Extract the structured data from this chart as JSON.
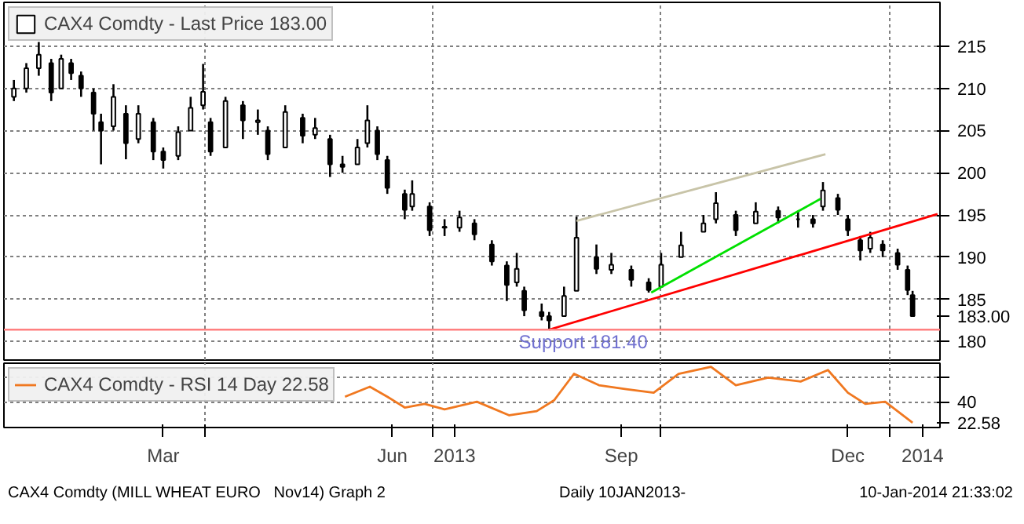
{
  "chart_data": [
    {
      "type": "candlestick",
      "xlim": [
        "2013-01-10",
        "2014-01-21"
      ],
      "ylim": [
        177.8,
        220.2
      ],
      "yticks": [
        180,
        185,
        190,
        195,
        200,
        205,
        210,
        215,
        {
          "value": 183,
          "label": "183.00"
        }
      ],
      "tick_labels": "y",
      "grid": true,
      "legend": "top left",
      "xticks": [
        {
          "value": "2013-04-01",
          "label": null
        },
        {
          "value": "2013-07-01",
          "label": null
        },
        {
          "value": "2013-10-01",
          "label": null
        },
        {
          "value": "2014-01-01",
          "label": null
        }
      ],
      "series": [
        {
          "type": "candlestick",
          "name": "CAX4 Comdty - Last Price 183.00",
          "color": "#000000",
          "x": [
            "2013-01-14",
            "2013-01-19",
            "2013-01-24",
            "2013-01-29",
            "2013-02-02",
            "2013-02-06",
            "2013-02-10",
            "2013-02-15",
            "2013-02-18",
            "2013-02-23",
            "2013-02-28",
            "2013-03-05",
            "2013-03-11",
            "2013-03-15",
            "2013-03-21",
            "2013-03-26",
            "2013-03-31",
            "2013-04-03",
            "2013-04-09",
            "2013-04-16",
            "2013-04-22",
            "2013-04-26",
            "2013-05-03",
            "2013-05-10",
            "2013-05-15",
            "2013-05-21",
            "2013-05-26",
            "2013-06-01",
            "2013-06-05",
            "2013-06-09",
            "2013-06-13",
            "2013-06-20",
            "2013-06-23",
            "2013-06-30",
            "2013-07-06",
            "2013-07-12",
            "2013-07-18",
            "2013-07-25",
            "2013-07-31",
            "2013-08-04",
            "2013-08-07",
            "2013-08-14",
            "2013-08-17",
            "2013-08-23",
            "2013-08-28",
            "2013-09-05",
            "2013-09-11",
            "2013-09-19",
            "2013-09-26",
            "2013-10-01",
            "2013-10-09",
            "2013-10-18",
            "2013-10-23",
            "2013-10-31",
            "2013-11-08",
            "2013-11-17",
            "2013-11-25",
            "2013-12-01",
            "2013-12-05",
            "2013-12-11",
            "2013-12-15",
            "2013-12-20",
            "2013-12-24",
            "2013-12-29",
            "2014-01-04",
            "2014-01-08",
            "2014-01-10"
          ],
          "ohlc": [
            [
              209,
              211,
              208.5,
              210
            ],
            [
              210,
              213,
              209.5,
              212.4
            ],
            [
              212.4,
              215.5,
              211.5,
              214
            ],
            [
              213,
              213.5,
              208.5,
              209.5
            ],
            [
              210,
              214,
              210,
              213.5
            ],
            [
              213,
              213.5,
              211,
              211.8
            ],
            [
              211.5,
              212,
              209,
              210
            ],
            [
              209.5,
              210,
              205,
              207
            ],
            [
              206,
              207,
              201,
              205
            ],
            [
              205.5,
              210.5,
              205,
              209
            ],
            [
              207,
              208,
              201.6,
              203.5
            ],
            [
              204,
              208,
              203.5,
              207
            ],
            [
              206,
              206.5,
              201.5,
              202.5
            ],
            [
              202.5,
              203,
              200.5,
              201.5
            ],
            [
              202,
              205.5,
              201.5,
              204.8
            ],
            [
              205,
              209,
              205,
              207.7
            ],
            [
              208,
              212.9,
              207.5,
              209.6
            ],
            [
              206,
              206.5,
              202,
              202.5
            ],
            [
              203,
              209,
              203,
              208.5
            ],
            [
              208,
              208.5,
              204,
              206.2
            ],
            [
              206,
              207.5,
              204.5,
              206.2
            ],
            [
              205,
              205.5,
              201.5,
              202.2
            ],
            [
              203,
              208,
              203,
              207.2
            ],
            [
              206.5,
              207,
              203.5,
              204.4
            ],
            [
              204.5,
              206.5,
              204,
              205.3
            ],
            [
              204,
              204.5,
              199.5,
              201
            ],
            [
              201,
              202,
              200,
              200.7
            ],
            [
              201,
              204,
              201,
              203
            ],
            [
              203.5,
              208,
              203,
              206.2
            ],
            [
              205,
              205.5,
              201.5,
              202.2
            ],
            [
              201.5,
              202,
              197.5,
              198.2
            ],
            [
              197.5,
              198,
              194.5,
              195.6
            ],
            [
              196,
              199.1,
              195.5,
              197.5
            ],
            [
              196,
              196.5,
              192.5,
              193.2
            ],
            [
              193.5,
              194.5,
              192.5,
              193.6
            ],
            [
              193.5,
              195.5,
              193,
              194.7
            ],
            [
              194,
              194.5,
              192,
              192.7
            ],
            [
              191.5,
              192,
              189,
              189.5
            ],
            [
              189,
              189.5,
              184.8,
              186.7
            ],
            [
              187,
              190.5,
              186.5,
              188.6
            ],
            [
              186,
              186.5,
              183,
              183.7
            ],
            [
              183.5,
              184.5,
              182.5,
              183
            ],
            [
              183,
              183.5,
              181.4,
              182.5
            ],
            [
              183,
              186.5,
              183,
              185.4
            ],
            [
              186,
              194.8,
              186,
              192.3
            ],
            [
              190,
              191.5,
              188,
              188.6
            ],
            [
              188.5,
              190.5,
              188,
              189.1
            ],
            [
              188.5,
              189,
              186.5,
              187.3
            ],
            [
              187,
              187.5,
              185.8,
              186.1
            ],
            [
              186.5,
              190.5,
              186.5,
              189.1
            ],
            [
              190,
              193,
              190,
              191.4
            ],
            [
              193,
              195,
              193,
              194
            ],
            [
              194.5,
              197.7,
              194,
              196.4
            ],
            [
              195,
              195.5,
              192.5,
              193.2
            ],
            [
              194,
              196.5,
              194,
              195.4
            ],
            [
              195.5,
              196,
              194,
              194.7
            ],
            [
              194.5,
              195.5,
              193.5,
              194.5
            ],
            [
              194.5,
              195,
              193.5,
              194
            ],
            [
              196,
              198.9,
              195.5,
              197.9
            ],
            [
              197,
              197.5,
              195,
              195.6
            ],
            [
              194.5,
              195,
              192.5,
              193.2
            ],
            [
              192,
              192.5,
              189.6,
              190.8
            ],
            [
              191,
              193,
              190.5,
              192.3
            ],
            [
              191.5,
              192,
              190,
              190.8
            ],
            [
              190.5,
              191,
              188.5,
              189.1
            ],
            [
              188.5,
              189,
              185.5,
              186.1
            ],
            [
              185.5,
              186,
              183,
              183
            ]
          ]
        },
        {
          "type": "line",
          "color": "#ff0000",
          "x": [
            "2013-08-17",
            "2014-01-20"
          ],
          "values": [
            181.4,
            195.1
          ]
        },
        {
          "type": "line",
          "color": "#00e000",
          "x": [
            "2013-09-27",
            "2013-12-04"
          ],
          "values": [
            185.8,
            196.9
          ]
        },
        {
          "type": "line",
          "color": "#c8c4a8",
          "x": [
            "2013-08-28",
            "2013-12-06"
          ],
          "values": [
            194.3,
            202.2
          ]
        }
      ],
      "ref_lines": [
        {
          "axis": "y",
          "value": 181.4,
          "label": "Support 181.40",
          "color": "#ff8080"
        }
      ]
    },
    {
      "type": "line",
      "xlim": [
        "2013-01-10",
        "2014-01-21"
      ],
      "ylim": [
        18.6,
        72
      ],
      "yticks": [
        {
          "value": 60,
          "label": null
        },
        40,
        {
          "value": 22.58,
          "label": "22.58"
        }
      ],
      "grid": true,
      "legend": "top left",
      "xticks": [
        {
          "value": "2013-03-15",
          "label": "Mar"
        },
        {
          "value": "2013-04-01",
          "label": null
        },
        {
          "value": "2013-06-15",
          "label": "Jun"
        },
        {
          "value": "2013-07-01",
          "label": null
        },
        {
          "value": "2013-07-10",
          "label": "2013"
        },
        {
          "value": "2013-09-15",
          "label": "Sep"
        },
        {
          "value": "2013-10-01",
          "label": null
        },
        {
          "value": "2013-12-15",
          "label": "Dec"
        },
        {
          "value": "2014-01-01",
          "label": null
        },
        {
          "value": "2014-01-14",
          "label": "2014"
        }
      ],
      "series": [
        {
          "name": "CAX4 Comdty - RSI 14 Day 22.58",
          "color": "#f07820",
          "x": [
            "2013-05-27",
            "2013-06-06",
            "2013-06-13",
            "2013-06-20",
            "2013-06-28",
            "2013-07-06",
            "2013-07-19",
            "2013-08-01",
            "2013-08-12",
            "2013-08-19",
            "2013-08-27",
            "2013-09-06",
            "2013-09-17",
            "2013-09-28",
            "2013-10-08",
            "2013-10-21",
            "2013-10-31",
            "2013-11-13",
            "2013-11-26",
            "2013-12-07",
            "2013-12-15",
            "2013-12-22",
            "2013-12-30",
            "2014-01-10"
          ],
          "values": [
            44.2,
            52.5,
            44.2,
            35.2,
            38.2,
            33.7,
            40,
            28.7,
            32.2,
            41.2,
            63.2,
            53.7,
            50.5,
            47.5,
            63.2,
            69,
            53.7,
            60,
            56.8,
            66.3,
            47.5,
            38.2,
            40,
            22.58
          ]
        }
      ],
      "annotations": [
        "CAX4 Comdty (MILL WHEAT EURO   Nov14) Graph 2",
        "Daily 10JAN2013-",
        "10-Jan-2014 21:33:02"
      ]
    }
  ]
}
